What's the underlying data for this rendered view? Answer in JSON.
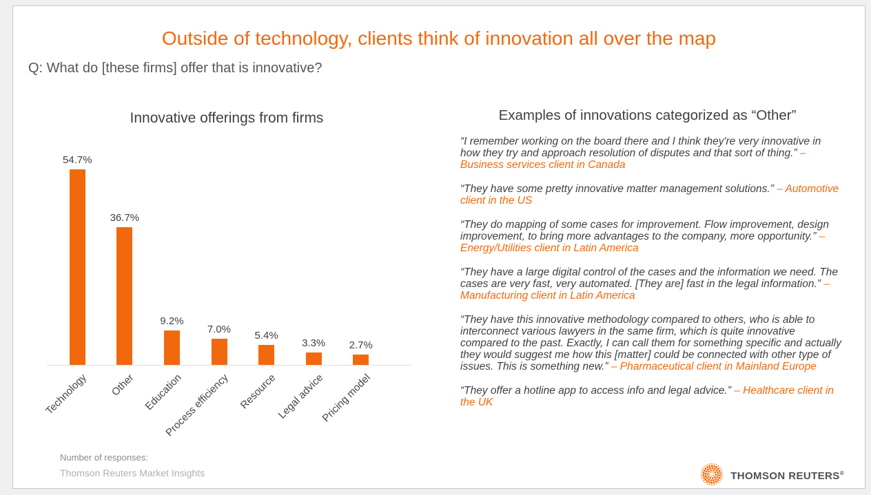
{
  "header": {
    "title": "Outside of technology, clients think of innovation all over the map",
    "question": "Q: What do [these firms] offer that is innovative?"
  },
  "chart_data": {
    "type": "bar",
    "title": "Innovative offerings from firms",
    "categories": [
      "Technology",
      "Other",
      "Education",
      "Process efficiency",
      "Resource",
      "Legal advice",
      "Pricing model"
    ],
    "values": [
      54.7,
      36.7,
      9.2,
      7.0,
      5.4,
      3.3,
      2.7
    ],
    "value_labels": [
      "54.7%",
      "36.7%",
      "9.2%",
      "7.0%",
      "5.4%",
      "3.3%",
      "2.7%"
    ],
    "bar_color": "#f2690d",
    "xlabel": "",
    "ylabel": "",
    "ylim": [
      0,
      60
    ],
    "grid": false,
    "legend": "none",
    "x_tick_rotation": 45
  },
  "quotes_panel": {
    "title": "Examples of innovations categorized as “Other”",
    "quotes": [
      {
        "text": "“I remember working on the board there and I think they're very innovative in how they try and approach resolution of disputes and that sort of thing.”",
        "attribution": "– Business services client in Canada"
      },
      {
        "text": "“They have some pretty innovative matter management solutions.”",
        "attribution": "– Automotive client in the US"
      },
      {
        "text": "“They do mapping of some cases for improvement. Flow improvement, design improvement, to bring more advantages to the company, more opportunity.”",
        "attribution": "– Energy/Utilities client in Latin America"
      },
      {
        "text": "“They have a large digital control of the cases and the information we need. The cases are very fast, very automated. [They are] fast in the legal information.”",
        "attribution": "– Manufacturing client in Latin America"
      },
      {
        "text": "“They have this innovative methodology compared to others, who is able to interconnect various lawyers in the same firm, which is quite innovative compared to the past. Exactly, I can call them for something specific and actually they would suggest me how this [matter] could be connected with other type of issues. This is something new.”",
        "attribution": "– Pharmaceutical client in Mainland Europe"
      },
      {
        "text": "“They offer a hotline app to access info and legal advice.”",
        "attribution": "– Healthcare client in the UK"
      }
    ]
  },
  "footer": {
    "responses_label": "Number of responses:",
    "source": "Thomson Reuters Market Insights",
    "logo_text": "THOMSON REUTERS",
    "logo_registered": "®"
  },
  "colors": {
    "accent_orange": "#f2690d",
    "text_dark": "#404040",
    "axis_line": "#dcdcde"
  }
}
